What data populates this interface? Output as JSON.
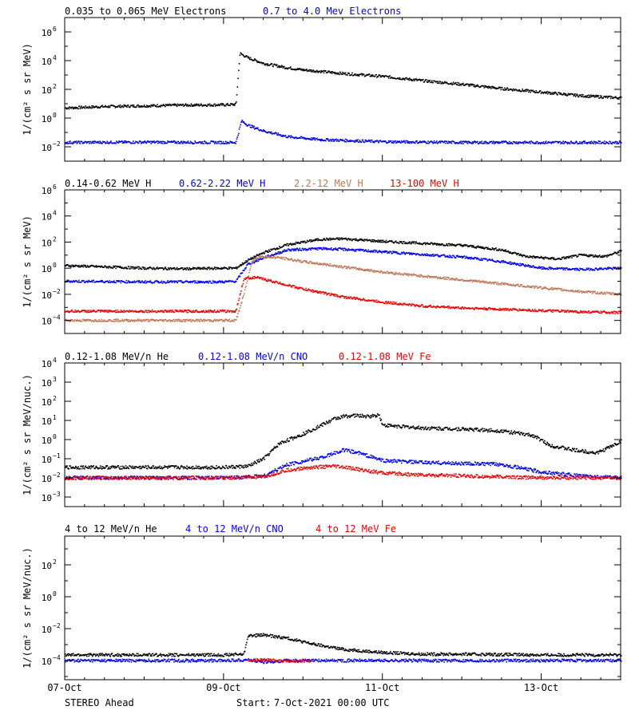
{
  "colors": {
    "black": "#000000",
    "blue": "#0000ee",
    "tan": "#c07858",
    "red": "#ee0000"
  },
  "chart_data": [
    {
      "type": "scatter",
      "ylabel": "1/(cm² s sr MeV)",
      "yscale": "log",
      "ylim_exp": [
        -3,
        7
      ],
      "ytick_exps": [
        -2,
        0,
        2,
        4,
        6
      ],
      "xlim_days": [
        0,
        7
      ],
      "legend": [
        {
          "label": "0.035 to 0.065 MeV Electrons",
          "color": "black"
        },
        {
          "label": "0.7 to 4.0 Mev Electrons",
          "color": "blue"
        }
      ],
      "series": [
        {
          "name": "0.035 to 0.065 MeV Electrons",
          "color": "black",
          "points": [
            [
              0,
              0.7
            ],
            [
              0.5,
              0.8
            ],
            [
              1,
              0.85
            ],
            [
              1.5,
              0.9
            ],
            [
              2,
              0.92
            ],
            [
              2.15,
              0.95
            ],
            [
              2.2,
              4.5
            ],
            [
              2.3,
              4.2
            ],
            [
              2.5,
              3.8
            ],
            [
              2.8,
              3.5
            ],
            [
              3,
              3.35
            ],
            [
              3.5,
              3.1
            ],
            [
              4,
              2.9
            ],
            [
              4.5,
              2.6
            ],
            [
              5,
              2.35
            ],
            [
              5.5,
              2.05
            ],
            [
              6,
              1.8
            ],
            [
              6.5,
              1.55
            ],
            [
              7,
              1.4
            ]
          ]
        },
        {
          "name": "0.7 to 4.0 Mev Electrons",
          "color": "blue",
          "points": [
            [
              0,
              -1.7
            ],
            [
              1,
              -1.68
            ],
            [
              2,
              -1.7
            ],
            [
              2.15,
              -1.7
            ],
            [
              2.22,
              -0.2
            ],
            [
              2.3,
              -0.5
            ],
            [
              2.5,
              -0.9
            ],
            [
              2.8,
              -1.3
            ],
            [
              3.2,
              -1.5
            ],
            [
              4,
              -1.65
            ],
            [
              5,
              -1.7
            ],
            [
              6,
              -1.7
            ],
            [
              7,
              -1.7
            ]
          ]
        }
      ]
    },
    {
      "type": "scatter",
      "ylabel": "1/(cm² s sr MeV)",
      "yscale": "log",
      "ylim_exp": [
        -5,
        6
      ],
      "ytick_exps": [
        -4,
        -2,
        0,
        2,
        4,
        6
      ],
      "xlim_days": [
        0,
        7
      ],
      "legend": [
        {
          "label": "0.14-0.62 MeV H",
          "color": "black"
        },
        {
          "label": "0.62-2.22 MeV H",
          "color": "blue"
        },
        {
          "label": "2.2-12 MeV H",
          "color": "tan"
        },
        {
          "label": "13-100 MeV H",
          "color": "red"
        }
      ],
      "series": [
        {
          "name": "0.14-0.62 MeV H",
          "color": "black",
          "points": [
            [
              0,
              0.2
            ],
            [
              0.5,
              0.1
            ],
            [
              1,
              0
            ],
            [
              1.5,
              -0.05
            ],
            [
              2,
              0
            ],
            [
              2.15,
              0
            ],
            [
              2.3,
              0.6
            ],
            [
              2.5,
              1.2
            ],
            [
              2.8,
              1.8
            ],
            [
              3.2,
              2.2
            ],
            [
              3.5,
              2.25
            ],
            [
              4,
              2.05
            ],
            [
              4.5,
              1.9
            ],
            [
              5,
              1.75
            ],
            [
              5.5,
              1.4
            ],
            [
              5.8,
              0.9
            ],
            [
              6.2,
              0.7
            ],
            [
              6.5,
              1.0
            ],
            [
              6.8,
              0.9
            ],
            [
              7,
              1.3
            ]
          ]
        },
        {
          "name": "0.62-2.22 MeV H",
          "color": "blue",
          "points": [
            [
              0,
              -1.0
            ],
            [
              1,
              -1.05
            ],
            [
              2,
              -1.05
            ],
            [
              2.15,
              -1.0
            ],
            [
              2.3,
              0.3
            ],
            [
              2.5,
              0.8
            ],
            [
              2.8,
              1.4
            ],
            [
              3.2,
              1.5
            ],
            [
              3.5,
              1.45
            ],
            [
              4,
              1.25
            ],
            [
              4.5,
              1.05
            ],
            [
              5,
              0.85
            ],
            [
              5.5,
              0.5
            ],
            [
              6,
              0
            ],
            [
              6.5,
              -0.1
            ],
            [
              7,
              0
            ]
          ]
        },
        {
          "name": "2.2-12 MeV H",
          "color": "tan",
          "points": [
            [
              0,
              -4.0
            ],
            [
              1,
              -4.0
            ],
            [
              2,
              -4.0
            ],
            [
              2.15,
              -4.0
            ],
            [
              2.25,
              -2.0
            ],
            [
              2.35,
              0.5
            ],
            [
              2.45,
              0.9
            ],
            [
              2.7,
              0.8
            ],
            [
              3,
              0.5
            ],
            [
              3.5,
              0.1
            ],
            [
              4,
              -0.3
            ],
            [
              4.5,
              -0.6
            ],
            [
              5,
              -0.9
            ],
            [
              5.5,
              -1.2
            ],
            [
              6,
              -1.5
            ],
            [
              6.5,
              -1.8
            ],
            [
              7,
              -2.0
            ]
          ]
        },
        {
          "name": "13-100 MeV H",
          "color": "red",
          "points": [
            [
              0,
              -3.3
            ],
            [
              1,
              -3.3
            ],
            [
              2,
              -3.3
            ],
            [
              2.15,
              -3.3
            ],
            [
              2.25,
              -0.8
            ],
            [
              2.4,
              -0.7
            ],
            [
              2.6,
              -1.0
            ],
            [
              3,
              -1.6
            ],
            [
              3.5,
              -2.2
            ],
            [
              4,
              -2.6
            ],
            [
              4.5,
              -2.9
            ],
            [
              5,
              -3.05
            ],
            [
              5.5,
              -3.15
            ],
            [
              6,
              -3.25
            ],
            [
              6.5,
              -3.35
            ],
            [
              7,
              -3.4
            ]
          ]
        }
      ]
    },
    {
      "type": "scatter",
      "ylabel": "1/(cm² s sr MeV/nuc.)",
      "yscale": "log",
      "ylim_exp": [
        -3.5,
        4
      ],
      "ytick_exps": [
        -3,
        -2,
        -1,
        0,
        1,
        2,
        3,
        4
      ],
      "xlim_days": [
        0,
        7
      ],
      "legend": [
        {
          "label": "0.12-1.08 MeV/n He",
          "color": "black"
        },
        {
          "label": "0.12-1.08 MeV/n CNO",
          "color": "blue"
        },
        {
          "label": "0.12-1.08 MeV Fe",
          "color": "red"
        }
      ],
      "series": [
        {
          "name": "0.12-1.08 MeV/n He",
          "color": "black",
          "points": [
            [
              0,
              -1.45
            ],
            [
              0.5,
              -1.45
            ],
            [
              1,
              -1.45
            ],
            [
              1.5,
              -1.45
            ],
            [
              2,
              -1.45
            ],
            [
              2.3,
              -1.4
            ],
            [
              2.5,
              -1.0
            ],
            [
              2.7,
              -0.2
            ],
            [
              3,
              0.3
            ],
            [
              3.3,
              0.9
            ],
            [
              3.4,
              1.1
            ],
            [
              3.5,
              1.2
            ],
            [
              3.6,
              1.25
            ],
            [
              3.7,
              1.25
            ],
            [
              3.8,
              1.2
            ],
            [
              3.9,
              1.25
            ],
            [
              3.95,
              1.3
            ],
            [
              4.0,
              0.75
            ],
            [
              4.5,
              0.6
            ],
            [
              5,
              0.55
            ],
            [
              5.5,
              0.45
            ],
            [
              5.9,
              0.2
            ],
            [
              6.1,
              -0.3
            ],
            [
              6.4,
              -0.55
            ],
            [
              6.7,
              -0.7
            ],
            [
              6.9,
              -0.3
            ],
            [
              7,
              -0.1
            ]
          ]
        },
        {
          "name": "0.12-1.08 MeV/n CNO",
          "color": "blue",
          "points": [
            [
              0,
              -2.0
            ],
            [
              1,
              -2.0
            ],
            [
              2,
              -2.0
            ],
            [
              2.5,
              -1.9
            ],
            [
              2.8,
              -1.3
            ],
            [
              3.1,
              -1.05
            ],
            [
              3.3,
              -0.85
            ],
            [
              3.4,
              -0.7
            ],
            [
              3.5,
              -0.55
            ],
            [
              3.7,
              -0.7
            ],
            [
              4,
              -1.1
            ],
            [
              4.5,
              -1.2
            ],
            [
              5,
              -1.25
            ],
            [
              5.5,
              -1.3
            ],
            [
              6,
              -1.7
            ],
            [
              6.5,
              -1.9
            ],
            [
              7,
              -2.0
            ]
          ]
        },
        {
          "name": "0.12-1.08 MeV Fe",
          "color": "red",
          "points": [
            [
              0,
              -2.0
            ],
            [
              1,
              -2.0
            ],
            [
              2,
              -2.0
            ],
            [
              2.5,
              -1.95
            ],
            [
              2.8,
              -1.6
            ],
            [
              3.1,
              -1.45
            ],
            [
              3.4,
              -1.4
            ],
            [
              3.6,
              -1.5
            ],
            [
              4,
              -1.75
            ],
            [
              4.5,
              -1.85
            ],
            [
              5,
              -1.9
            ],
            [
              6,
              -2.0
            ],
            [
              7,
              -2.0
            ]
          ]
        }
      ]
    },
    {
      "type": "scatter",
      "ylabel": "1/(cm² s sr MeV/nuc.)",
      "yscale": "log",
      "ylim_exp": [
        -5.2,
        3.8
      ],
      "ytick_exps": [
        -4,
        -2,
        0,
        2
      ],
      "xlim_days": [
        0,
        7
      ],
      "xticklabels": [
        {
          "day": 0,
          "label": "07-Oct"
        },
        {
          "day": 2,
          "label": "09-Oct"
        },
        {
          "day": 4,
          "label": "11-Oct"
        },
        {
          "day": 6,
          "label": "13-Oct"
        }
      ],
      "legend": [
        {
          "label": "4 to 12 MeV/n He",
          "color": "black"
        },
        {
          "label": "4 to 12 MeV/n CNO",
          "color": "blue"
        },
        {
          "label": "4 to 12 MeV Fe",
          "color": "red"
        }
      ],
      "series": [
        {
          "name": "4 to 12 MeV/n He",
          "color": "black",
          "points": [
            [
              0,
              -3.65
            ],
            [
              1,
              -3.65
            ],
            [
              2,
              -3.65
            ],
            [
              2.25,
              -3.6
            ],
            [
              2.3,
              -2.45
            ],
            [
              2.5,
              -2.4
            ],
            [
              2.8,
              -2.6
            ],
            [
              3.1,
              -2.95
            ],
            [
              3.5,
              -3.3
            ],
            [
              4,
              -3.5
            ],
            [
              4.5,
              -3.6
            ],
            [
              5,
              -3.6
            ],
            [
              6,
              -3.65
            ],
            [
              7,
              -3.65
            ]
          ]
        },
        {
          "name": "4 to 12 MeV/n CNO",
          "color": "blue",
          "points": [
            [
              0,
              -4.0
            ],
            [
              1,
              -4.0
            ],
            [
              2,
              -4.0
            ],
            [
              2.3,
              -3.95
            ],
            [
              2.5,
              -4.1
            ],
            [
              2.8,
              -4.0
            ],
            [
              3.2,
              -4.0
            ],
            [
              4,
              -4.0
            ],
            [
              5,
              -4.0
            ],
            [
              6,
              -4.0
            ],
            [
              7,
              -4.0
            ]
          ]
        },
        {
          "name": "4 to 12 MeV Fe",
          "color": "red",
          "points": [
            [
              2.3,
              -4.0
            ],
            [
              2.5,
              -3.95
            ],
            [
              2.7,
              -4.0
            ],
            [
              2.9,
              -4.05
            ],
            [
              3.1,
              -4.0
            ]
          ]
        }
      ]
    }
  ],
  "footer": {
    "spacecraft": "STEREO Ahead",
    "start_label": "Start:",
    "start_value": "7-Oct-2021 00:00 UTC"
  }
}
